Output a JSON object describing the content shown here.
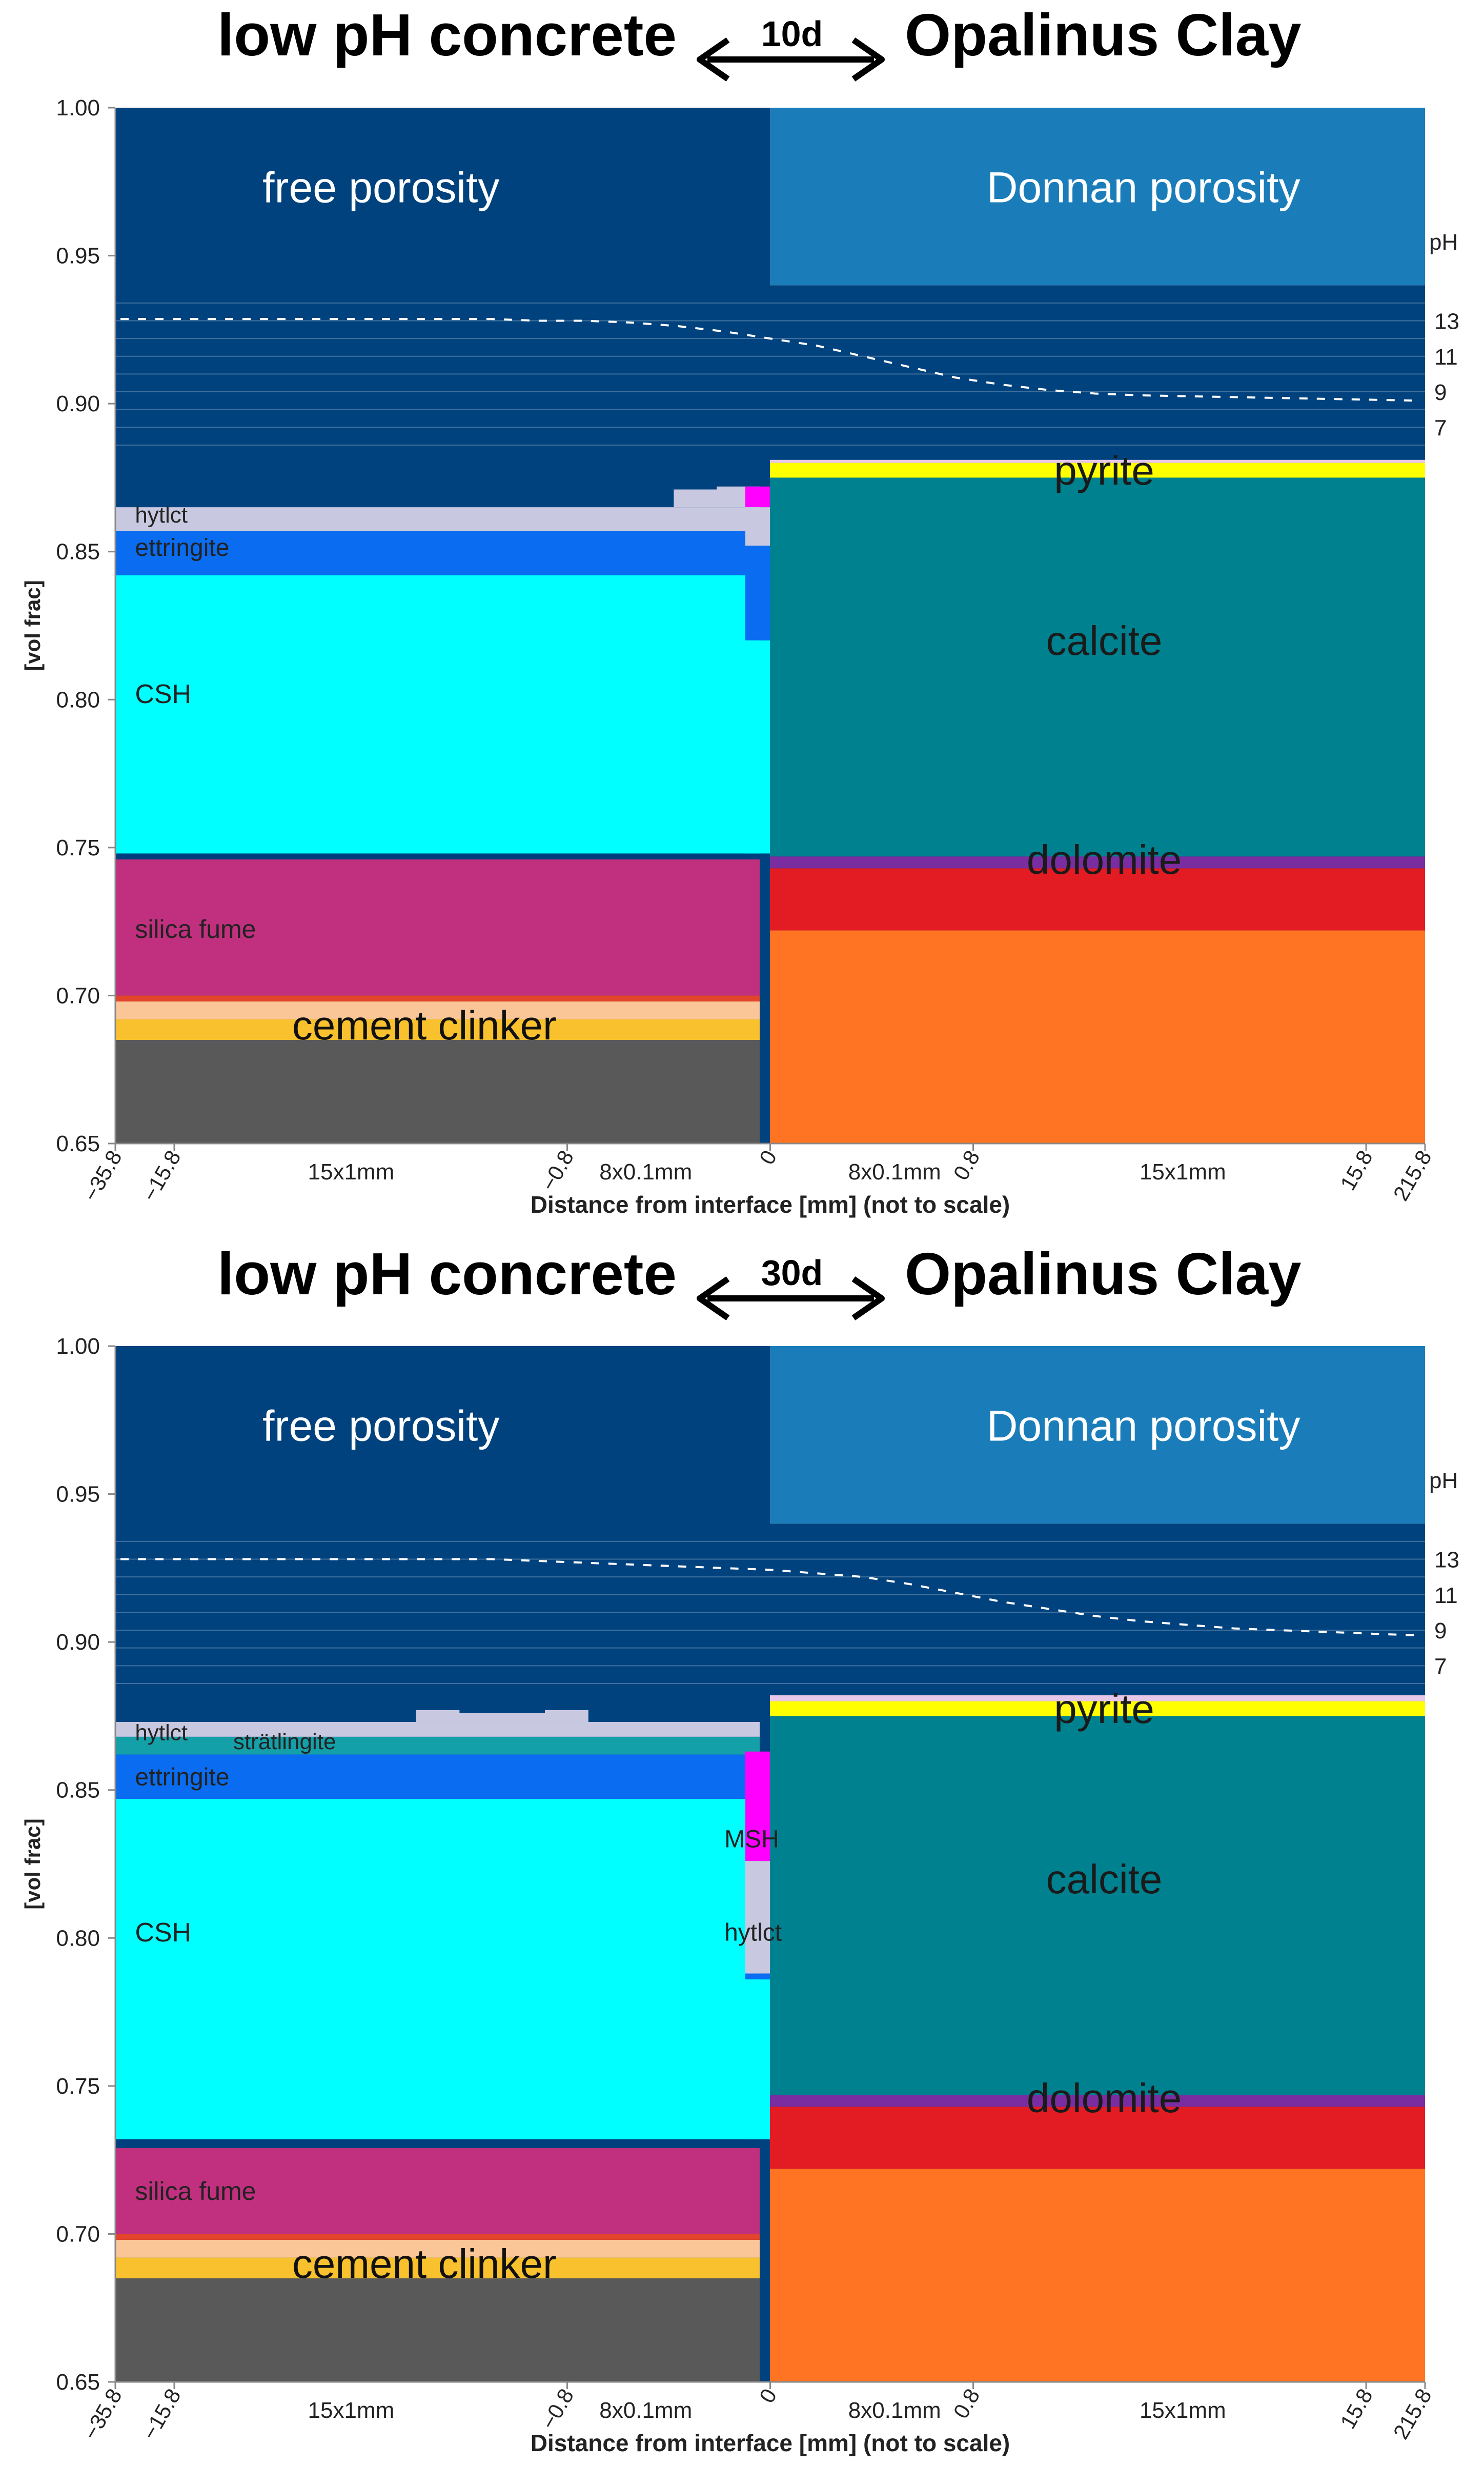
{
  "chart_data": [
    {
      "type": "area",
      "title_left": "low pH concrete",
      "title_arrow_label": "10d",
      "title_right": "Opalinus Clay",
      "xlabel": "Distance from interface [mm] (not to scale)",
      "ylabel": "[vol frac]",
      "ylim": [
        0.65,
        1.0
      ],
      "yticks": [
        "0.65",
        "0.70",
        "0.75",
        "0.80",
        "0.85",
        "0.90",
        "0.95",
        "1.00"
      ],
      "xticks": [
        "-35.8",
        "-15.8",
        "-0.8",
        "0",
        "0.8",
        "15.8",
        "215.8"
      ],
      "x_range_labels": [
        "15x1mm",
        "8x0.1mm",
        "8x0.1mm",
        "15x1mm"
      ],
      "ph_axis": {
        "label": "pH",
        "ticks": [
          "13",
          "11",
          "9",
          "7"
        ],
        "range": [
          5,
          15
        ],
        "y_range": [
          0.88,
          0.94
        ]
      },
      "ph_profile": [
        13.1,
        13.1,
        13.1,
        13.1,
        13.1,
        13.1,
        13.1,
        13.1,
        13.1,
        13.0,
        13.0,
        12.9,
        12.7,
        12.4,
        12.0,
        11.6,
        11.0,
        10.4,
        9.8,
        9.4,
        9.1,
        8.9,
        8.8,
        8.75,
        8.7,
        8.65,
        8.6,
        8.55,
        8.5
      ],
      "concrete_side": {
        "top_label": "free porosity",
        "labels": [
          "hytlct",
          "ettringite",
          "CSH",
          "silica fume",
          "cement clinker"
        ],
        "profile": [
          0.865,
          0.865,
          0.865,
          0.865,
          0.864,
          0.864,
          0.864,
          0.864,
          0.863,
          0.862,
          0.862,
          0.863,
          0.864,
          0.871,
          0.872
        ],
        "layers": [
          {
            "name": "clinker-grey",
            "color": "#595959",
            "from": 0.65,
            "to": 0.685
          },
          {
            "name": "clinker-yellow",
            "color": "#F9C12D",
            "from": 0.685,
            "to": 0.692
          },
          {
            "name": "clinker-peach",
            "color": "#FAC597",
            "from": 0.692,
            "to": 0.698
          },
          {
            "name": "clinker-red",
            "color": "#E2452B",
            "from": 0.698,
            "to": 0.7
          },
          {
            "name": "silica fume",
            "color": "#C0307E",
            "from": 0.7,
            "to": 0.746
          },
          {
            "name": "pore-thin",
            "color": "#003F7D",
            "from": 0.746,
            "to": 0.748
          },
          {
            "name": "CSH",
            "color": "#00FFFF",
            "from": 0.748,
            "to": 0.842
          },
          {
            "name": "ettringite",
            "color": "#0A6CF0",
            "from": 0.842,
            "to": 0.857
          },
          {
            "name": "hytlct",
            "color": "#C8C8E0",
            "from": 0.857,
            "to": 0.865
          }
        ]
      },
      "clay_side": {
        "top_label": "Donnan porosity",
        "labels": [
          "pyrite",
          "calcite",
          "dolomite"
        ],
        "layers": [
          {
            "name": "clay-orange",
            "color": "#FF7422",
            "from": 0.65,
            "to": 0.722
          },
          {
            "name": "clay-red",
            "color": "#E31B23",
            "from": 0.722,
            "to": 0.743
          },
          {
            "name": "dolomite",
            "color": "#7A2DA0",
            "from": 0.743,
            "to": 0.747
          },
          {
            "name": "calcite",
            "color": "#00818F",
            "from": 0.747,
            "to": 0.875
          },
          {
            "name": "pyrite",
            "color": "#FFFF00",
            "from": 0.875,
            "to": 0.88
          },
          {
            "name": "pyrite-top",
            "color": "#E8C8E8",
            "from": 0.88,
            "to": 0.881
          }
        ]
      }
    },
    {
      "type": "area",
      "title_left": "low pH concrete",
      "title_arrow_label": "30d",
      "title_right": "Opalinus Clay",
      "xlabel": "Distance from interface [mm] (not to scale)",
      "ylabel": "[vol frac]",
      "ylim": [
        0.65,
        1.0
      ],
      "yticks": [
        "0.65",
        "0.70",
        "0.75",
        "0.80",
        "0.85",
        "0.90",
        "0.95",
        "1.00"
      ],
      "xticks": [
        "-35.8",
        "-15.8",
        "-0.8",
        "0",
        "0.8",
        "15.8",
        "215.8"
      ],
      "x_range_labels": [
        "15x1mm",
        "8x0.1mm",
        "8x0.1mm",
        "15x1mm"
      ],
      "ph_axis": {
        "label": "pH",
        "ticks": [
          "13",
          "11",
          "9",
          "7"
        ],
        "range": [
          5,
          15
        ],
        "y_range": [
          0.88,
          0.94
        ]
      },
      "ph_profile": [
        13.0,
        13.0,
        13.0,
        13.0,
        13.0,
        13.0,
        13.0,
        13.0,
        13.0,
        12.9,
        12.8,
        12.7,
        12.6,
        12.5,
        12.4,
        12.2,
        12.0,
        11.6,
        11.1,
        10.6,
        10.2,
        9.8,
        9.5,
        9.3,
        9.1,
        9.0,
        8.9,
        8.8,
        8.7
      ],
      "concrete_side": {
        "top_label": "free porosity",
        "labels": [
          "hytlct",
          "strätlingite",
          "ettringite",
          "CSH",
          "silica fume",
          "cement clinker",
          "MSH",
          "hytlct"
        ],
        "profile": [
          0.873,
          0.873,
          0.873,
          0.873,
          0.872,
          0.872,
          0.872,
          0.877,
          0.876,
          0.876,
          0.877,
          0.87,
          0.864,
          0.867,
          0.863
        ],
        "layers": [
          {
            "name": "clinker-grey",
            "color": "#595959",
            "from": 0.65,
            "to": 0.685
          },
          {
            "name": "clinker-yellow",
            "color": "#F9C12D",
            "from": 0.685,
            "to": 0.692
          },
          {
            "name": "clinker-peach",
            "color": "#FAC597",
            "from": 0.692,
            "to": 0.698
          },
          {
            "name": "clinker-red",
            "color": "#E2452B",
            "from": 0.698,
            "to": 0.7
          },
          {
            "name": "silica fume",
            "color": "#C0307E",
            "from": 0.7,
            "to": 0.729
          },
          {
            "name": "pore-thin",
            "color": "#003F7D",
            "from": 0.729,
            "to": 0.732
          },
          {
            "name": "CSH",
            "color": "#00FFFF",
            "from": 0.732,
            "to": 0.847
          },
          {
            "name": "ettringite",
            "color": "#0A6CF0",
            "from": 0.847,
            "to": 0.862
          },
          {
            "name": "strätlingite",
            "color": "#14A0A8",
            "from": 0.862,
            "to": 0.868
          },
          {
            "name": "hytlct",
            "color": "#C8C8E0",
            "from": 0.868,
            "to": 0.873
          }
        ]
      },
      "clay_side": {
        "top_label": "Donnan porosity",
        "labels": [
          "pyrite",
          "calcite",
          "dolomite"
        ],
        "layers": [
          {
            "name": "clay-orange",
            "color": "#FF7422",
            "from": 0.65,
            "to": 0.722
          },
          {
            "name": "clay-red",
            "color": "#E31B23",
            "from": 0.722,
            "to": 0.743
          },
          {
            "name": "dolomite",
            "color": "#7A2DA0",
            "from": 0.743,
            "to": 0.747
          },
          {
            "name": "calcite",
            "color": "#00818F",
            "from": 0.747,
            "to": 0.875
          },
          {
            "name": "pyrite",
            "color": "#FFFF00",
            "from": 0.875,
            "to": 0.88
          },
          {
            "name": "pyrite-top",
            "color": "#E8C8E8",
            "from": 0.88,
            "to": 0.882
          }
        ]
      }
    }
  ],
  "colors": {
    "free_porosity": "#00427E",
    "donnan_porosity": "#1A7DBA",
    "text_light": "#FFFFFF",
    "text_dark": "#1A1A1A"
  }
}
